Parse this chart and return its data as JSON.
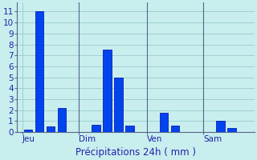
{
  "bars": [
    {
      "x": 1,
      "height": 0.2
    },
    {
      "x": 2,
      "height": 11.0
    },
    {
      "x": 3,
      "height": 0.5
    },
    {
      "x": 4,
      "height": 2.2
    },
    {
      "x": 7,
      "height": 0.7
    },
    {
      "x": 8,
      "height": 7.5
    },
    {
      "x": 9,
      "height": 5.0
    },
    {
      "x": 10,
      "height": 0.6
    },
    {
      "x": 13,
      "height": 1.8
    },
    {
      "x": 14,
      "height": 0.6
    },
    {
      "x": 18,
      "height": 1.0
    },
    {
      "x": 19,
      "height": 0.4
    }
  ],
  "bar_width": 0.75,
  "bar_color": "#0044ee",
  "bar_edge_color": "#0000aa",
  "vline_positions": [
    5.5,
    11.5,
    16.5
  ],
  "vline_color": "#556688",
  "xtick_positions": [
    0.5,
    5.5,
    11.5,
    16.5
  ],
  "xtick_labels": [
    "Jeu",
    "Dim",
    "Ven",
    "Sam"
  ],
  "ytick_values": [
    0,
    1,
    2,
    3,
    4,
    5,
    6,
    7,
    8,
    9,
    10,
    11
  ],
  "ylim": [
    0,
    11.8
  ],
  "xlim": [
    0,
    21
  ],
  "xlabel": "Précipitations 24h ( mm )",
  "background_color": "#c8eeee",
  "grid_color": "#99cccc",
  "xlabel_fontsize": 8.5,
  "tick_fontsize": 7.5,
  "tick_color": "#2222aa"
}
